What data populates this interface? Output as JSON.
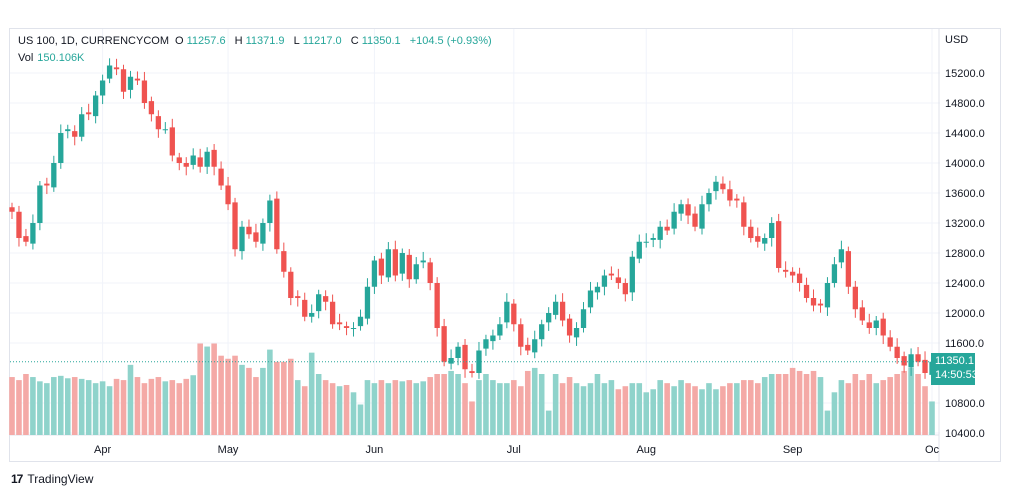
{
  "legend": {
    "symbol": "US 100, 1D, CURRENCYCOM",
    "open_label": "O",
    "open": "11257.6",
    "high_label": "H",
    "high": "11371.9",
    "low_label": "L",
    "low": "11217.0",
    "close_label": "C",
    "close": "11350.1",
    "change": "+104.5 (+0.93%)"
  },
  "volume": {
    "label": "Vol",
    "value": "150.106K"
  },
  "axis": {
    "currency": "USD"
  },
  "price_badge": {
    "price": "11350.1",
    "countdown": "14:50:53"
  },
  "brand": {
    "logo": "17",
    "name": "TradingView"
  },
  "colors": {
    "up": "#26a69a",
    "down": "#ef5350",
    "up_volume": "#8fd3cb",
    "down_volume": "#f4a9a6",
    "grid": "#f0f3fa",
    "axis_text": "#131722"
  },
  "chart_data": {
    "type": "candlestick",
    "ylabel": "USD",
    "ylim": [
      10400,
      15600
    ],
    "y_ticks": [
      "15200.0",
      "14800.0",
      "14400.0",
      "14000.0",
      "13600.0",
      "13200.0",
      "12800.0",
      "12400.0",
      "12000.0",
      "11600.0",
      "10800.0",
      "10400.0"
    ],
    "x_ticks": [
      {
        "label": "Apr",
        "index": 13
      },
      {
        "label": "May",
        "index": 31
      },
      {
        "label": "Jun",
        "index": 52
      },
      {
        "label": "Jul",
        "index": 72
      },
      {
        "label": "Aug",
        "index": 91
      },
      {
        "label": "Sep",
        "index": 112
      },
      {
        "label": "Oc",
        "index": 132
      }
    ],
    "last_price": 11350.1,
    "close": [
      13350,
      13000,
      12950,
      13200,
      13700,
      13700,
      14000,
      14400,
      14450,
      14350,
      14650,
      14650,
      14900,
      15100,
      15300,
      15250,
      14950,
      15150,
      15100,
      14800,
      14650,
      14450,
      14450,
      14100,
      14000,
      13950,
      14100,
      13950,
      14150,
      13950,
      13700,
      13450,
      12850,
      13150,
      13050,
      12950,
      13200,
      13500,
      12850,
      12550,
      12200,
      12200,
      11950,
      12000,
      12250,
      12150,
      11850,
      11850,
      11800,
      11800,
      11950,
      12350,
      12700,
      12500,
      12850,
      12500,
      12800,
      12450,
      12650,
      12700,
      12400,
      11800,
      11350,
      11400,
      11550,
      11250,
      11200,
      11500,
      11650,
      11700,
      11850,
      12150,
      11850,
      11550,
      11500,
      11650,
      11850,
      12000,
      12150,
      11900,
      11700,
      11800,
      12050,
      12300,
      12350,
      12500,
      12500,
      12400,
      12250,
      12750,
      12950,
      12950,
      13000,
      13150,
      13100,
      13350,
      13450,
      13300,
      13150,
      13450,
      13600,
      13750,
      13650,
      13500,
      13500,
      13150,
      13000,
      12950,
      13000,
      13200,
      12600,
      12550,
      12500,
      12400,
      12200,
      12100,
      12100,
      12400,
      12650,
      12850,
      12350,
      12050,
      11900,
      11800,
      11900,
      11700,
      11550,
      11400,
      11300,
      11450,
      11350,
      11200,
      11350
    ],
    "volume_relative": [
      0.95,
      0.9,
      1.0,
      0.95,
      0.88,
      0.85,
      0.95,
      0.97,
      0.93,
      0.95,
      0.92,
      0.9,
      0.85,
      0.88,
      0.8,
      0.92,
      0.9,
      1.15,
      0.95,
      0.85,
      0.92,
      0.95,
      0.88,
      0.9,
      0.85,
      0.92,
      0.98,
      1.5,
      1.45,
      1.5,
      1.3,
      1.25,
      1.3,
      1.15,
      1.1,
      0.95,
      1.1,
      1.4,
      1.2,
      1.2,
      1.25,
      0.9,
      0.8,
      1.35,
      1.0,
      0.9,
      0.85,
      0.8,
      0.82,
      0.7,
      0.5,
      0.9,
      0.85,
      0.9,
      0.85,
      0.9,
      0.88,
      0.9,
      0.85,
      0.88,
      0.95,
      1.0,
      1.0,
      1.05,
      1.0,
      0.85,
      0.55,
      0.9,
      1.0,
      0.9,
      0.85,
      0.85,
      0.9,
      0.8,
      1.05,
      1.1,
      1.0,
      0.4,
      1.0,
      0.85,
      0.95,
      0.85,
      0.8,
      0.85,
      1.0,
      0.85,
      0.9,
      0.75,
      0.8,
      0.85,
      0.85,
      0.7,
      0.75,
      0.9,
      0.85,
      0.8,
      0.9,
      0.85,
      0.8,
      0.75,
      0.85,
      0.75,
      0.8,
      0.85,
      0.85,
      0.9,
      0.9,
      0.85,
      0.95,
      1.0,
      1.0,
      1.0,
      1.1,
      1.05,
      1.0,
      1.05,
      0.95,
      0.4,
      0.7,
      0.9,
      0.85,
      1.0,
      0.9,
      1.0,
      0.85,
      0.9,
      0.95,
      1.0,
      1.05,
      1.1,
      1.0,
      0.8,
      0.55
    ]
  }
}
